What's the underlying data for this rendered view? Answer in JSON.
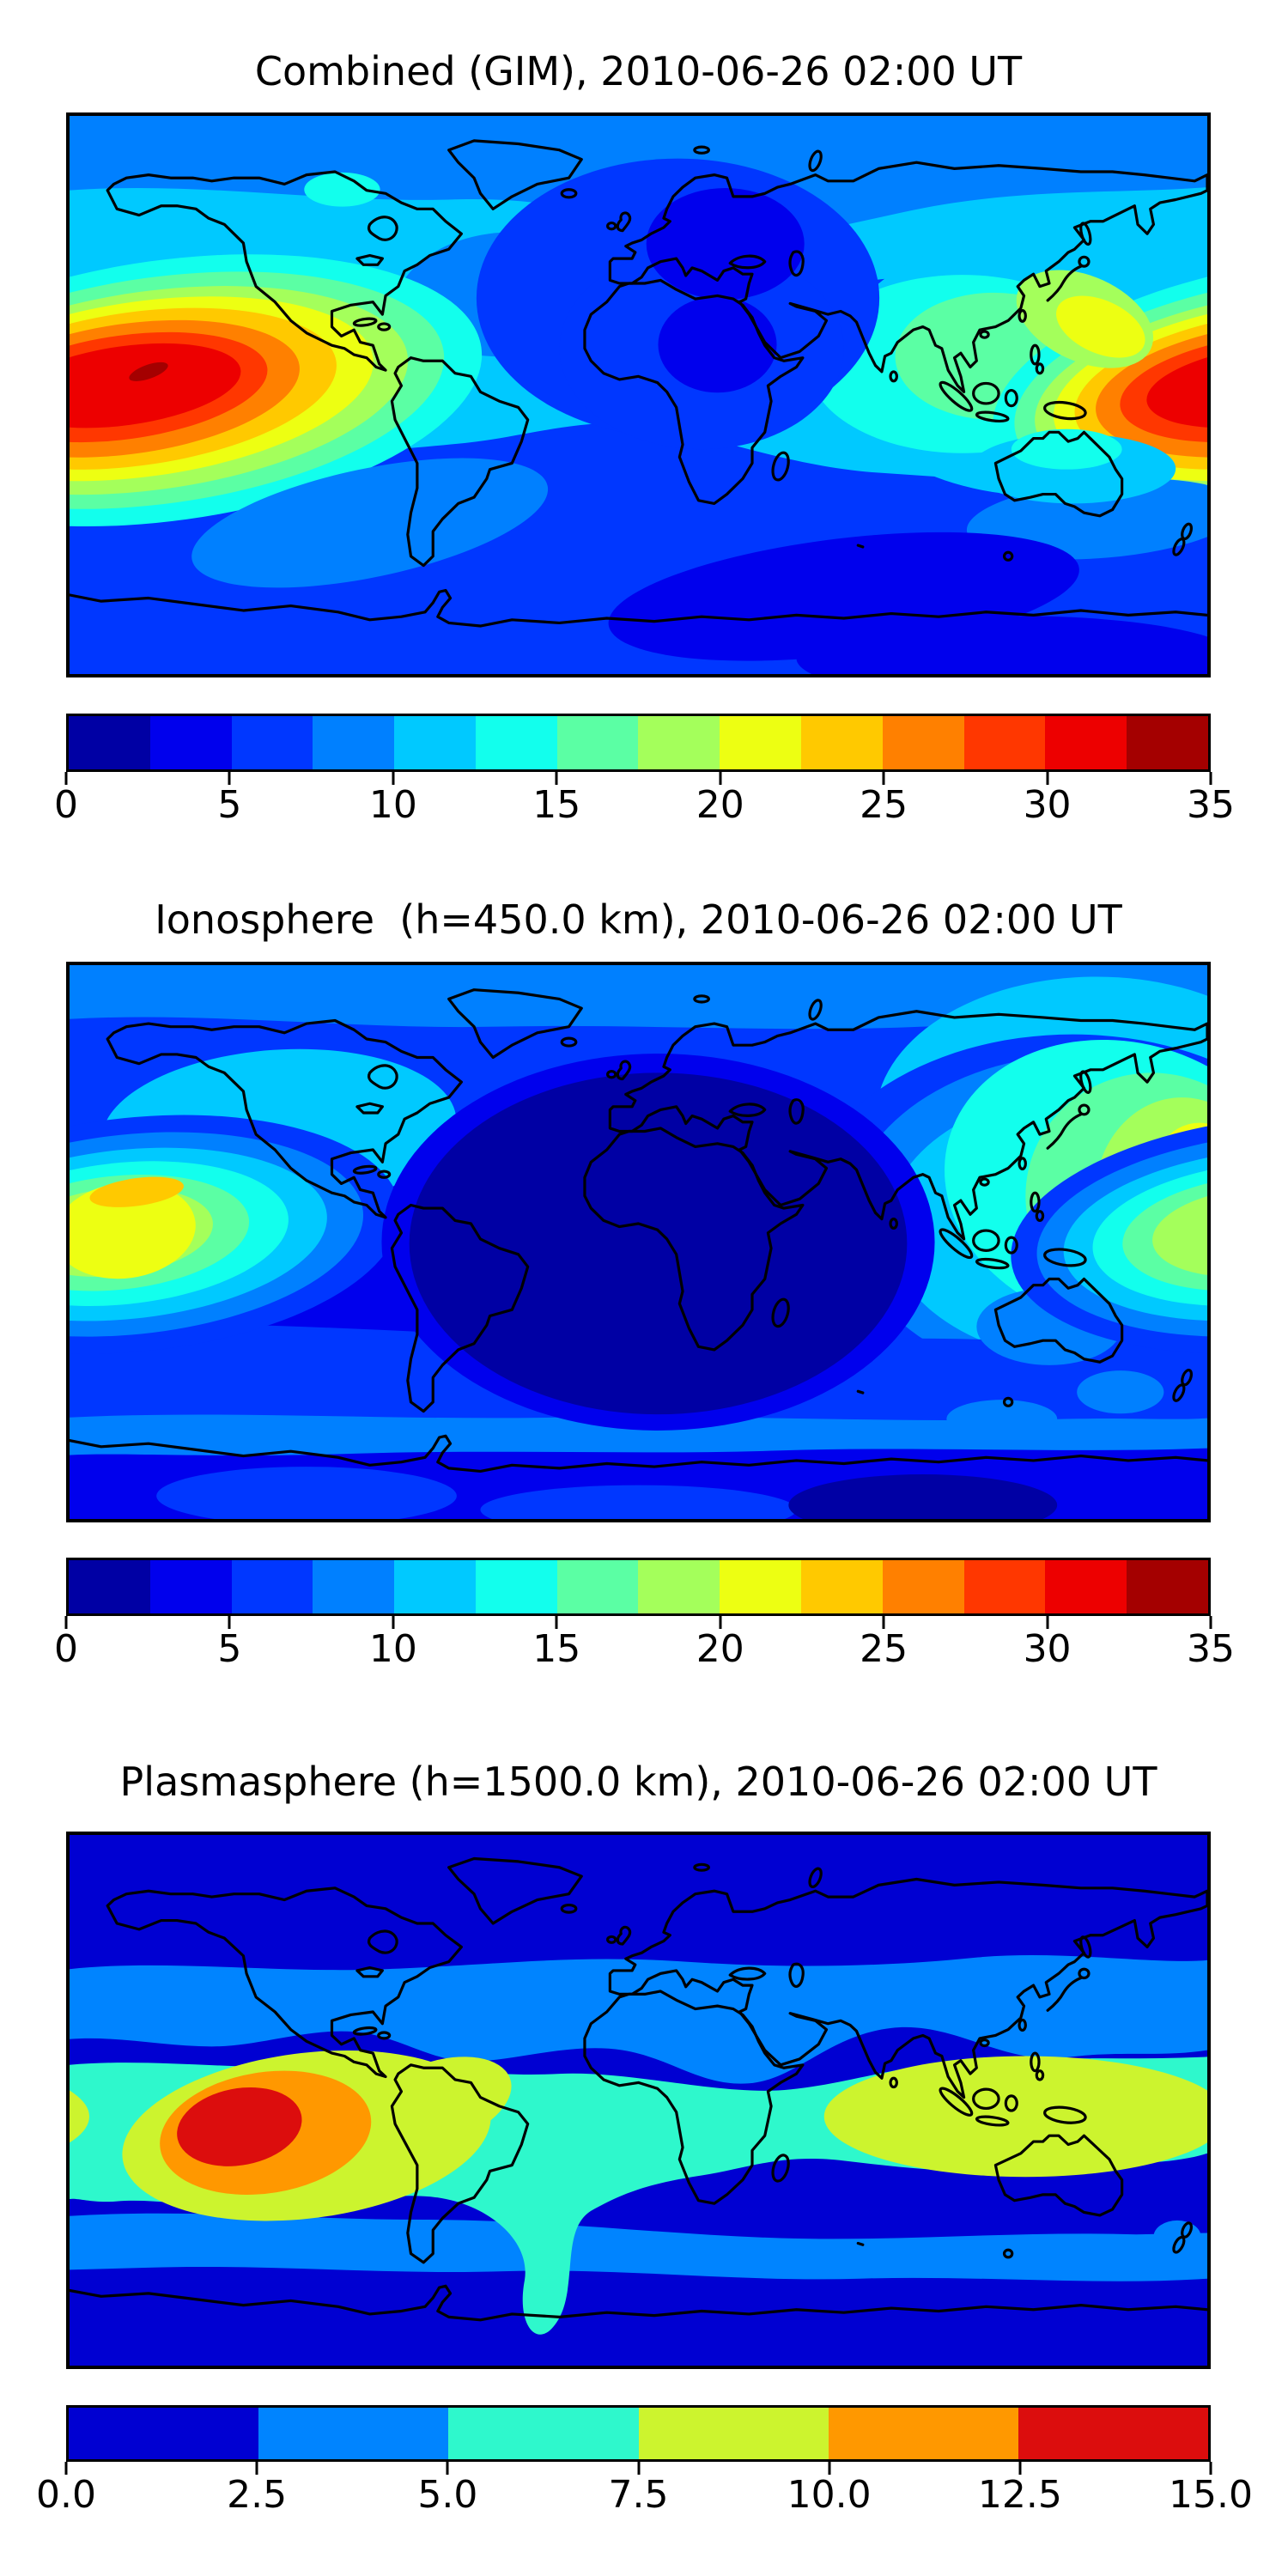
{
  "figure": {
    "background": "#ffffff",
    "text_color": "#000000",
    "frame_color": "#000000"
  },
  "palettes": {
    "jet14": [
      "#0000A4",
      "#0000ED",
      "#0037FF",
      "#0080FF",
      "#00C9FF",
      "#12FFED",
      "#5BFFA4",
      "#A4FF5B",
      "#EDFF12",
      "#FFC900",
      "#FF8000",
      "#FF3700",
      "#ED0000",
      "#A40000"
    ],
    "jet6": [
      "#0000D2",
      "#0084FF",
      "#2EF8CC",
      "#CCF42E",
      "#FF9800",
      "#DC0D0D"
    ]
  },
  "panels": [
    {
      "id": "combined",
      "title": "Combined (GIM), 2010-06-26 02:00 UT",
      "colorbar": {
        "min": 0,
        "max": 35,
        "palette": "jet14",
        "tick_labels": [
          "0",
          "5",
          "10",
          "15",
          "20",
          "25",
          "30",
          "35"
        ]
      }
    },
    {
      "id": "ionosphere",
      "title": "Ionosphere  (h=450.0 km), 2010-06-26 02:00 UT",
      "colorbar": {
        "min": 0,
        "max": 35,
        "palette": "jet14",
        "tick_labels": [
          "0",
          "5",
          "10",
          "15",
          "20",
          "25",
          "30",
          "35"
        ]
      }
    },
    {
      "id": "plasmasphere",
      "title": "Plasmasphere (h=1500.0 km), 2010-06-26 02:00 UT",
      "colorbar": {
        "min": 0,
        "max": 15,
        "palette": "jet6",
        "tick_labels": [
          "0.0",
          "2.5",
          "5.0",
          "7.5",
          "10.0",
          "12.5",
          "15.0"
        ]
      }
    }
  ],
  "chart_data": [
    {
      "type": "filled_contour_map",
      "title": "Combined (GIM), 2010-06-26 02:00 UT",
      "layer": "Combined (GIM)",
      "timestamp": "2010-06-26 02:00 UT",
      "projection": "equirectangular world map with coastlines, lon -180..180, lat -90..90",
      "value_range": [
        0,
        35
      ],
      "contour_interval": 2.5,
      "colormap": "jet, 14 discrete bands",
      "colorbar_ticks": [
        0,
        5,
        10,
        15,
        20,
        25,
        30,
        35
      ],
      "legend_position": "horizontal colorbar below map",
      "features": [
        {
          "name": "primary maximum",
          "location": "central Pacific near the dateline, ~155W near equator",
          "approx_value": "32.5-35"
        },
        {
          "name": "secondary maximum lobe",
          "location": "western Pacific / East Asia, reaching the right map edge near ~165E",
          "approx_value": "30-32.5"
        },
        {
          "name": "minimum region",
          "location": "Europe / Africa night sector and south mid-latitude Indian Ocean band",
          "approx_value": "2.5-5"
        }
      ]
    },
    {
      "type": "filled_contour_map",
      "title": "Ionosphere  (h=450.0 km), 2010-06-26 02:00 UT",
      "layer": "Ionosphere (h=450.0 km)",
      "timestamp": "2010-06-26 02:00 UT",
      "projection": "equirectangular world map with coastlines, lon -180..180, lat -90..90",
      "value_range": [
        0,
        35
      ],
      "contour_interval": 2.5,
      "colormap": "jet, 14 discrete bands",
      "colorbar_ticks": [
        0,
        5,
        10,
        15,
        20,
        25,
        30,
        35
      ],
      "legend_position": "horizontal colorbar below map",
      "features": [
        {
          "name": "primary maximum",
          "location": "central Pacific ~155W, low latitudes",
          "approx_value": "22.5-25"
        },
        {
          "name": "secondary maximum",
          "location": "western Pacific near right map edge, low latitudes",
          "approx_value": "20-22.5"
        },
        {
          "name": "minimum region",
          "location": "large dark area over South America, Atlantic, Africa and Europe",
          "approx_value": "0-2.5"
        }
      ]
    },
    {
      "type": "filled_contour_map",
      "title": "Plasmasphere (h=1500.0 km), 2010-06-26 02:00 UT",
      "layer": "Plasmasphere (h=1500.0 km)",
      "timestamp": "2010-06-26 02:00 UT",
      "projection": "equirectangular world map with coastlines, lon -180..180, lat -90..90",
      "value_range": [
        0,
        15
      ],
      "contour_interval": 2.5,
      "colormap": "jet, 6 discrete bands",
      "colorbar_ticks": [
        0.0,
        2.5,
        5.0,
        7.5,
        10.0,
        12.5,
        15.0
      ],
      "legend_position": "horizontal colorbar below map",
      "features": [
        {
          "name": "primary maximum",
          "location": "southeast Pacific ~127W, ~8S",
          "approx_value": "12.5-15"
        },
        {
          "name": "secondary high band",
          "location": "yellow-green tropical bands over South America/east Pacific and Indian/west Pacific sector",
          "approx_value": "7.5-10"
        },
        {
          "name": "minimum region",
          "location": "high latitudes north and south",
          "approx_value": "0-2.5"
        }
      ]
    }
  ]
}
